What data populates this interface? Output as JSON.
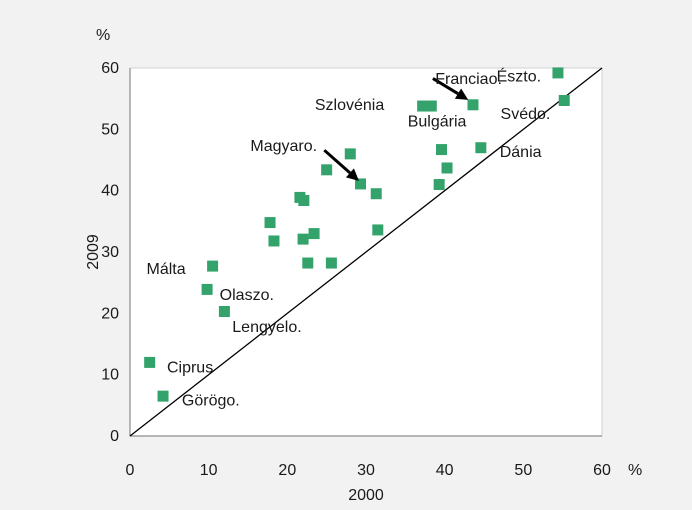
{
  "colors": {
    "marker": "#33a36b",
    "background": "#f2f2f2",
    "plot_bg": "#ffffff",
    "axis": "#8c8c8c",
    "text": "#1a1a1a",
    "line": "#000000"
  },
  "chart_data": {
    "type": "scatter",
    "xlabel": "2000",
    "ylabel": "2009",
    "x_unit": "%",
    "y_unit": "%",
    "xlim": [
      0,
      60
    ],
    "ylim": [
      0,
      60
    ],
    "xticks": [
      "0",
      "10",
      "20",
      "30",
      "40",
      "50",
      "60"
    ],
    "yticks": [
      "0",
      "10",
      "20",
      "30",
      "40",
      "50",
      "60"
    ],
    "grid": false,
    "reference_line": {
      "from": [
        0,
        0
      ],
      "to": [
        60,
        60
      ]
    },
    "points": [
      {
        "x": 2.5,
        "y": 12.0
      },
      {
        "x": 4.2,
        "y": 6.5
      },
      {
        "x": 9.8,
        "y": 23.9
      },
      {
        "x": 10.5,
        "y": 27.7
      },
      {
        "x": 12.0,
        "y": 20.3
      },
      {
        "x": 17.8,
        "y": 34.8
      },
      {
        "x": 18.3,
        "y": 31.8
      },
      {
        "x": 21.6,
        "y": 38.9
      },
      {
        "x": 22.0,
        "y": 32.1
      },
      {
        "x": 22.1,
        "y": 38.4
      },
      {
        "x": 22.6,
        "y": 28.2
      },
      {
        "x": 23.4,
        "y": 33.0
      },
      {
        "x": 25.0,
        "y": 43.4
      },
      {
        "x": 25.6,
        "y": 28.2
      },
      {
        "x": 28.0,
        "y": 46.0
      },
      {
        "x": 29.3,
        "y": 41.1
      },
      {
        "x": 31.3,
        "y": 39.5
      },
      {
        "x": 31.5,
        "y": 33.6
      },
      {
        "x": 37.2,
        "y": 53.8
      },
      {
        "x": 38.3,
        "y": 53.8
      },
      {
        "x": 39.3,
        "y": 41.0
      },
      {
        "x": 39.6,
        "y": 46.7
      },
      {
        "x": 40.3,
        "y": 43.7
      },
      {
        "x": 43.6,
        "y": 54.0
      },
      {
        "x": 44.6,
        "y": 47.0
      },
      {
        "x": 54.4,
        "y": 59.2
      },
      {
        "x": 55.2,
        "y": 54.7
      }
    ],
    "annotations": [
      {
        "text": "Franciao.",
        "x": 38.8,
        "y": 58.2
      },
      {
        "text": "Észto.",
        "x": 46.6,
        "y": 58.6
      },
      {
        "text": "Szlovénia",
        "x": 23.5,
        "y": 54.0
      },
      {
        "text": "Bulgária",
        "x": 35.3,
        "y": 51.3
      },
      {
        "text": "Svédo.",
        "x": 47.1,
        "y": 52.5
      },
      {
        "text": "Magyaro.",
        "x": 15.3,
        "y": 47.3
      },
      {
        "text": "Dánia",
        "x": 47.0,
        "y": 46.3
      },
      {
        "text": "Málta",
        "x": 2.1,
        "y": 27.2
      },
      {
        "text": "Olaszo.",
        "x": 11.4,
        "y": 23.0
      },
      {
        "text": "Lengyelo.",
        "x": 13.0,
        "y": 17.8
      },
      {
        "text": "Ciprus",
        "x": 4.7,
        "y": 11.2
      },
      {
        "text": "Görögo.",
        "x": 6.6,
        "y": 5.8
      }
    ],
    "arrows": [
      {
        "from": [
          38.5,
          58.3
        ],
        "to": [
          43.0,
          54.8
        ]
      },
      {
        "from": [
          24.7,
          46.6
        ],
        "to": [
          29.1,
          41.6
        ]
      }
    ]
  }
}
